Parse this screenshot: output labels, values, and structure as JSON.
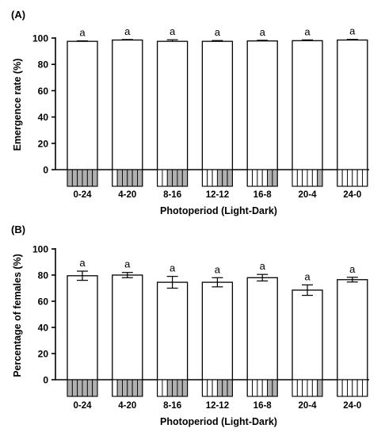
{
  "chart_data": [
    {
      "type": "bar",
      "panel_label": "(A)",
      "ylabel": "Emergence rate (%)",
      "xlabel": "Photoperiod (Light-Dark)",
      "ylim": [
        0,
        100
      ],
      "yticks": [
        "0",
        "20",
        "40",
        "60",
        "80",
        "100"
      ],
      "categories": [
        "0-24",
        "4-20",
        "8-16",
        "12-12",
        "16-8",
        "20-4",
        "24-0"
      ],
      "light_hours": [
        0,
        4,
        8,
        12,
        16,
        20,
        24
      ],
      "values": [
        97.5,
        98.5,
        97.5,
        97.5,
        97.8,
        98.0,
        98.5
      ],
      "errors": [
        0.4,
        0.4,
        1.2,
        0.6,
        0.5,
        0.6,
        0.5
      ],
      "significance": [
        "a",
        "a",
        "a",
        "a",
        "a",
        "a",
        "a"
      ]
    },
    {
      "type": "bar",
      "panel_label": "(B)",
      "ylabel": "Percentage of females (%)",
      "xlabel": "Photoperiod (Light-Dark)",
      "ylim": [
        0,
        100
      ],
      "yticks": [
        "0",
        "20",
        "40",
        "60",
        "80",
        "100"
      ],
      "categories": [
        "0-24",
        "4-20",
        "8-16",
        "12-12",
        "16-8",
        "20-4",
        "24-0"
      ],
      "light_hours": [
        0,
        4,
        8,
        12,
        16,
        20,
        24
      ],
      "values": [
        79.5,
        80.0,
        74.5,
        74.5,
        78.0,
        68.5,
        76.5
      ],
      "errors": [
        3.5,
        2.0,
        4.5,
        3.5,
        2.5,
        4.0,
        1.8
      ],
      "significance": [
        "a",
        "a",
        "a",
        "a",
        "a",
        "a",
        "a"
      ]
    }
  ],
  "colors": {
    "bar_fill": "#ffffff",
    "dark_block": "#b0b0b0",
    "light_block": "#ffffff",
    "stroke": "#000000"
  }
}
